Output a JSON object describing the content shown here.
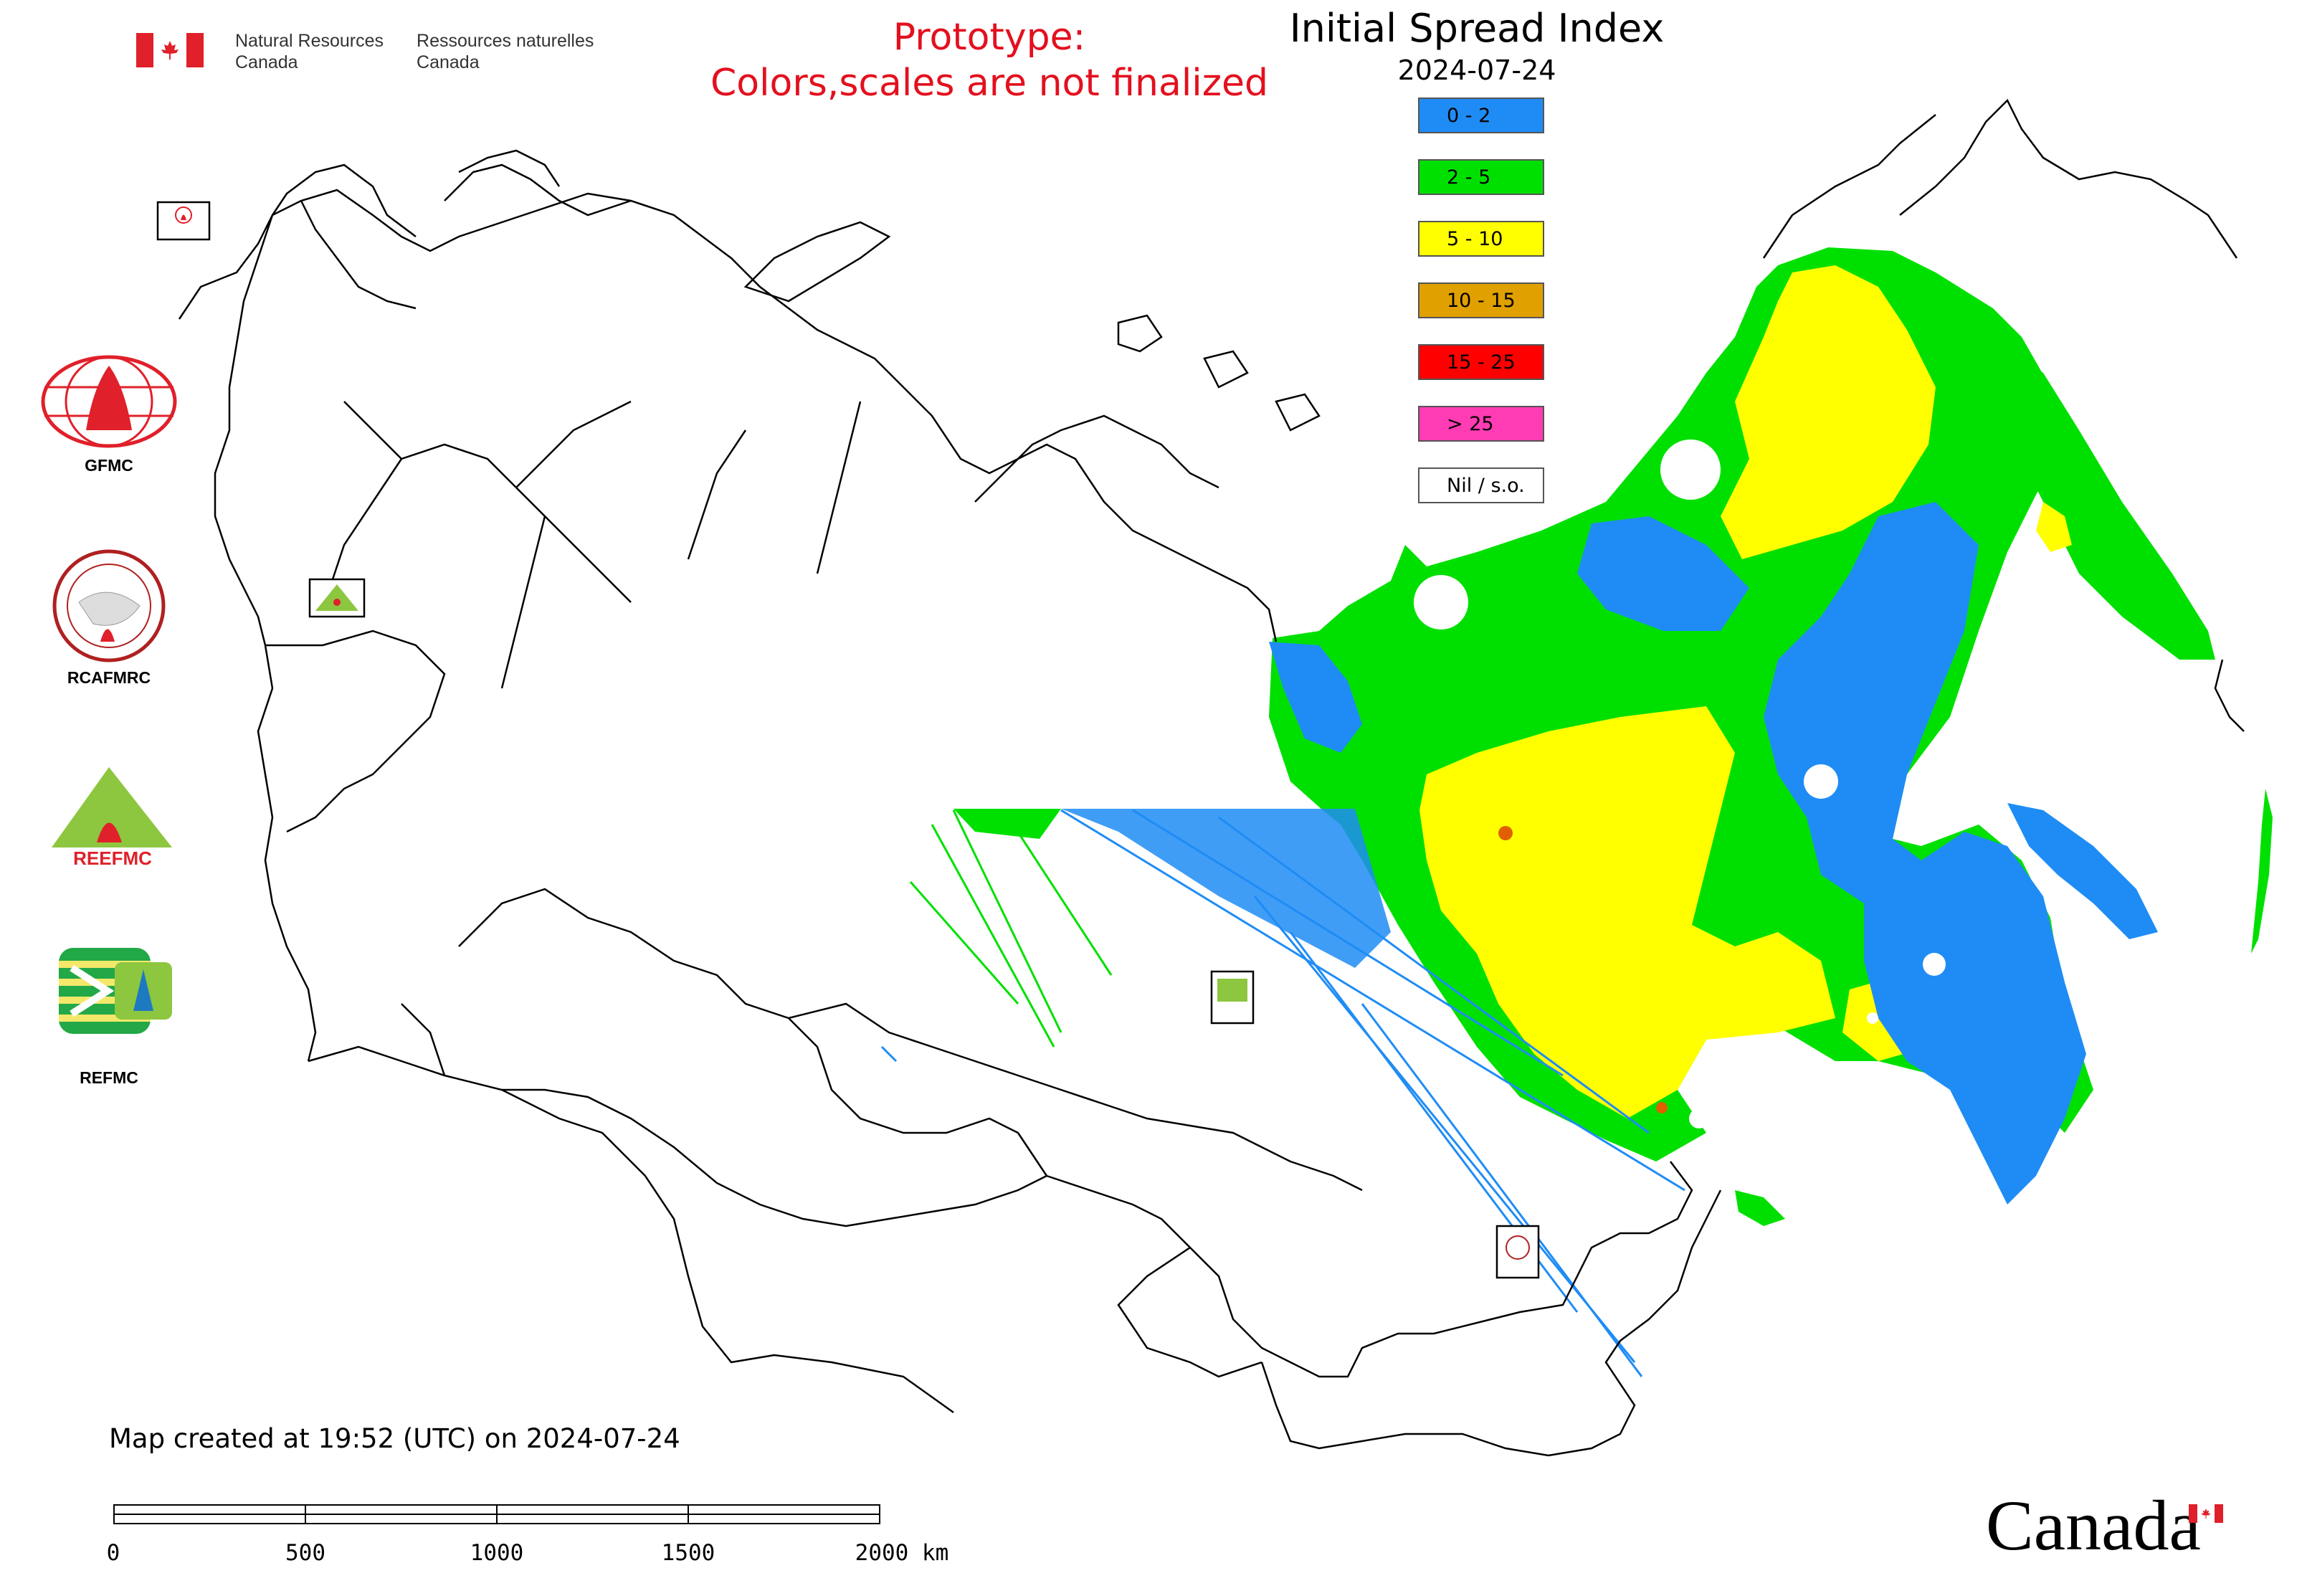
{
  "header": {
    "agency_en_line1": "Natural Resources",
    "agency_en_line2": "Canada",
    "agency_fr_line1": "Ressources naturelles",
    "agency_fr_line2": "Canada",
    "prototype_line1": "Prototype:",
    "prototype_line2": "Colors,scales are not finalized"
  },
  "legend": {
    "title": "Initial Spread Index",
    "date": "2024-07-24",
    "classes": [
      {
        "label": "0 - 2",
        "color": "#1f8cf5"
      },
      {
        "label": "2 - 5",
        "color": "#00e000"
      },
      {
        "label": "5 - 10",
        "color": "#ffff00"
      },
      {
        "label": "10 - 15",
        "color": "#e0a000"
      },
      {
        "label": "15 - 25",
        "color": "#ff0000"
      },
      {
        "label": "> 25",
        "color": "#ff3cb4"
      },
      {
        "label": "Nil / s.o.",
        "color": "#ffffff"
      }
    ]
  },
  "logos": {
    "gfmc": "GFMC",
    "rcafmrc": "RCAFMRC",
    "reefmc": "REEFMC",
    "refmc": "REFMC"
  },
  "map_markers": [
    {
      "name": "GFMC",
      "icon": "gfmc-logo-icon"
    },
    {
      "name": "REEFMC",
      "icon": "reefmc-logo-icon"
    },
    {
      "name": "REFMC",
      "icon": "refmc-logo-icon"
    },
    {
      "name": "RCAFMRC",
      "icon": "rcafmrc-logo-icon"
    }
  ],
  "footer": {
    "created": "Map created at 19:52 (UTC) on 2024-07-24",
    "scale_ticks": [
      "0",
      "500",
      "1000",
      "1500",
      "2000 km"
    ],
    "wordmark": "Canada"
  }
}
